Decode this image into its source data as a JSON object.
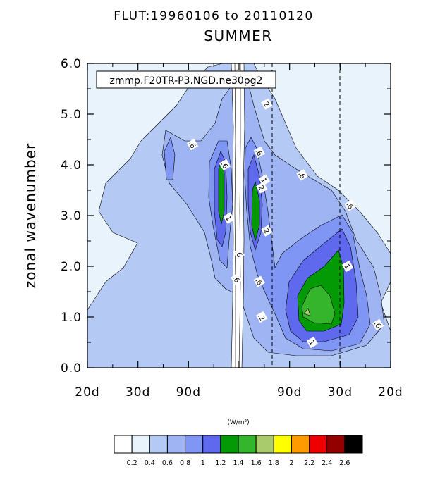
{
  "header": {
    "title": "FLUT:19960106 to 20110120",
    "subtitle": "SUMMER"
  },
  "annotation": "zmmp.F20TR-P3.NGD.ne30pg2",
  "chart_data": {
    "type": "heatmap",
    "ylabel": "zonal wavenumber",
    "xlabel": "",
    "x_tick_labels": [
      "20d",
      "30d",
      "90d",
      "",
      "90d",
      "30d",
      "20d"
    ],
    "y_tick_labels": [
      "0.0",
      "1.0",
      "2.0",
      "3.0",
      "4.0",
      "5.0",
      "6.0"
    ],
    "ylim": [
      0,
      6
    ],
    "x_range_index": [
      0,
      6
    ],
    "dashed_reference_lines_x_index": [
      4,
      5
    ],
    "contour_levels": [
      0.2,
      0.4,
      0.6,
      0.8,
      1,
      1.2,
      1.4,
      1.6,
      1.8,
      2,
      2.2,
      2.4,
      2.6
    ],
    "contour_labels": [
      {
        "label": ".6",
        "x_index": 2.08,
        "y": 4.4
      },
      {
        "label": ".6",
        "x_index": 2.72,
        "y": 4.0
      },
      {
        "label": ".6",
        "x_index": 3.4,
        "y": 4.25
      },
      {
        "label": "1",
        "x_index": 3.5,
        "y": 3.7
      },
      {
        "label": "2",
        "x_index": 3.55,
        "y": 5.2
      },
      {
        "label": "2",
        "x_index": 3.45,
        "y": 3.55
      },
      {
        "label": "2",
        "x_index": 3.55,
        "y": 2.7
      },
      {
        "label": "1",
        "x_index": 2.8,
        "y": 2.95
      },
      {
        "label": ".6",
        "x_index": 3.0,
        "y": 2.25
      },
      {
        "label": ".6",
        "x_index": 2.95,
        "y": 1.75
      },
      {
        "label": ".6",
        "x_index": 3.4,
        "y": 1.7
      },
      {
        "label": ".6",
        "x_index": 4.25,
        "y": 3.8
      },
      {
        "label": ".6",
        "x_index": 5.2,
        "y": 3.2
      },
      {
        "label": "1",
        "x_index": 5.15,
        "y": 2.0
      },
      {
        "label": ".2",
        "x_index": 3.45,
        "y": 1.0
      },
      {
        "label": "1",
        "x_index": 4.45,
        "y": 0.5
      },
      {
        "label": ".6",
        "x_index": 5.75,
        "y": 0.85
      }
    ]
  },
  "colorbar": {
    "units": "(W/m²)",
    "labels": [
      "0.2",
      "0.4",
      "0.6",
      "0.8",
      "1",
      "1.2",
      "1.4",
      "1.6",
      "1.8",
      "2",
      "2.2",
      "2.4",
      "2.6"
    ],
    "colors": [
      "#ffffff",
      "#e8f3fc",
      "#b4c9f4",
      "#9fb4f2",
      "#8096f4",
      "#5e69ee",
      "#049a06",
      "#35b52c",
      "#a9cb6c",
      "#ffff00",
      "#ff9b00",
      "#ef0000",
      "#920000",
      "#000000"
    ]
  }
}
